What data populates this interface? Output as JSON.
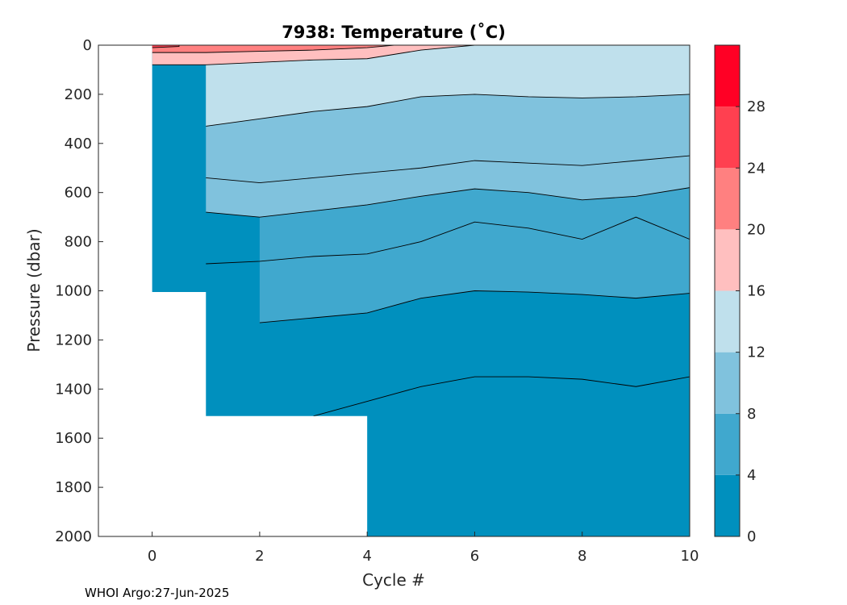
{
  "chart_data": {
    "type": "contour",
    "title": "7938:  Temperature (˚C)",
    "xlabel": "Cycle #",
    "ylabel": "Pressure (dbar)",
    "xlim": [
      -1,
      10
    ],
    "ylim": [
      0,
      2000
    ],
    "y_reversed": true,
    "x_ticks": [
      0,
      2,
      4,
      6,
      8,
      10
    ],
    "y_ticks": [
      0,
      200,
      400,
      600,
      800,
      1000,
      1200,
      1400,
      1600,
      1800,
      2000
    ],
    "colorbar": {
      "range": [
        0,
        32
      ],
      "tick_values": [
        0,
        4,
        8,
        12,
        16,
        20,
        24,
        28
      ],
      "tick_labels": [
        "0",
        "4",
        "8",
        "12",
        "16",
        "20",
        "24",
        "28"
      ],
      "bands": [
        {
          "from": 0,
          "to": 4,
          "color": "#0090BE"
        },
        {
          "from": 4,
          "to": 8,
          "color": "#40A8CE"
        },
        {
          "from": 8,
          "to": 12,
          "color": "#80C2DD"
        },
        {
          "from": 12,
          "to": 16,
          "color": "#BFE0EC"
        },
        {
          "from": 16,
          "to": 20,
          "color": "#FFBFBF"
        },
        {
          "from": 20,
          "to": 24,
          "color": "#FF8080"
        },
        {
          "from": 24,
          "to": 28,
          "color": "#FF4050"
        },
        {
          "from": 28,
          "to": 32,
          "color": "#FF0025"
        }
      ]
    },
    "profiles": [
      {
        "cycle": 0,
        "max_pressure": 90
      },
      {
        "cycle": 1,
        "max_pressure": 1005
      },
      {
        "cycle": 2,
        "max_pressure": 1510
      },
      {
        "cycle": 3,
        "max_pressure": 1510
      },
      {
        "cycle": 4,
        "max_pressure": 1510
      },
      {
        "cycle": 5,
        "max_pressure": 2000
      },
      {
        "cycle": 6,
        "max_pressure": 2000
      },
      {
        "cycle": 7,
        "max_pressure": 2000
      },
      {
        "cycle": 8,
        "max_pressure": 2000
      },
      {
        "cycle": 9,
        "max_pressure": 2000
      },
      {
        "cycle": 10,
        "max_pressure": 2000
      }
    ],
    "isotherms": [
      {
        "temperature": 4,
        "points": [
          [
            2,
            1130
          ],
          [
            3,
            1110
          ],
          [
            4,
            1090
          ],
          [
            5,
            1030
          ],
          [
            6,
            1000
          ],
          [
            7,
            1005
          ],
          [
            8,
            1015
          ],
          [
            9,
            1030
          ],
          [
            10,
            1010
          ]
        ]
      },
      {
        "temperature": 8,
        "points": [
          [
            1,
            680
          ],
          [
            2,
            700
          ],
          [
            3,
            675
          ],
          [
            4,
            650
          ],
          [
            5,
            615
          ],
          [
            6,
            585
          ],
          [
            7,
            600
          ],
          [
            8,
            630
          ],
          [
            9,
            615
          ],
          [
            10,
            580
          ]
        ]
      },
      {
        "temperature": 12,
        "points": [
          [
            1,
            330
          ],
          [
            2,
            300
          ],
          [
            3,
            270
          ],
          [
            4,
            250
          ],
          [
            5,
            210
          ],
          [
            6,
            200
          ],
          [
            7,
            210
          ],
          [
            8,
            215
          ],
          [
            9,
            210
          ],
          [
            10,
            200
          ]
        ]
      },
      {
        "temperature": 16,
        "points": [
          [
            0,
            80
          ],
          [
            1,
            80
          ],
          [
            2,
            70
          ],
          [
            3,
            60
          ],
          [
            4,
            55
          ],
          [
            5,
            20
          ],
          [
            6,
            0
          ],
          [
            7,
            0
          ],
          [
            8,
            0
          ],
          [
            9,
            0
          ],
          [
            10,
            0
          ]
        ]
      },
      {
        "temperature": 20,
        "points": [
          [
            0,
            30
          ],
          [
            1,
            30
          ],
          [
            2,
            25
          ],
          [
            3,
            20
          ],
          [
            4,
            10
          ],
          [
            4.5,
            0
          ]
        ]
      },
      {
        "temperature": 24,
        "points": [
          [
            0,
            10
          ],
          [
            0.5,
            5
          ],
          [
            0.5,
            0
          ]
        ]
      }
    ],
    "extra_contours_in_band_4_8": [
      {
        "points": [
          [
            1,
            890
          ],
          [
            2,
            880
          ],
          [
            3,
            860
          ],
          [
            4,
            850
          ],
          [
            5,
            800
          ],
          [
            6,
            720
          ],
          [
            7,
            745
          ],
          [
            8,
            790
          ],
          [
            9,
            700
          ],
          [
            10,
            790
          ]
        ]
      },
      {
        "points": [
          [
            1,
            540
          ],
          [
            2,
            560
          ],
          [
            3,
            540
          ],
          [
            4,
            520
          ],
          [
            5,
            500
          ],
          [
            6,
            470
          ],
          [
            7,
            480
          ],
          [
            8,
            490
          ],
          [
            9,
            470
          ],
          [
            10,
            450
          ]
        ]
      }
    ],
    "extra_contours_in_band_0_4": [
      {
        "points": [
          [
            3,
            1510
          ],
          [
            4,
            1450
          ],
          [
            5,
            1390
          ],
          [
            6,
            1350
          ],
          [
            7,
            1350
          ],
          [
            8,
            1360
          ],
          [
            9,
            1390
          ],
          [
            10,
            1350
          ]
        ]
      }
    ],
    "footer": "WHOI Argo:27-Jun-2025"
  }
}
